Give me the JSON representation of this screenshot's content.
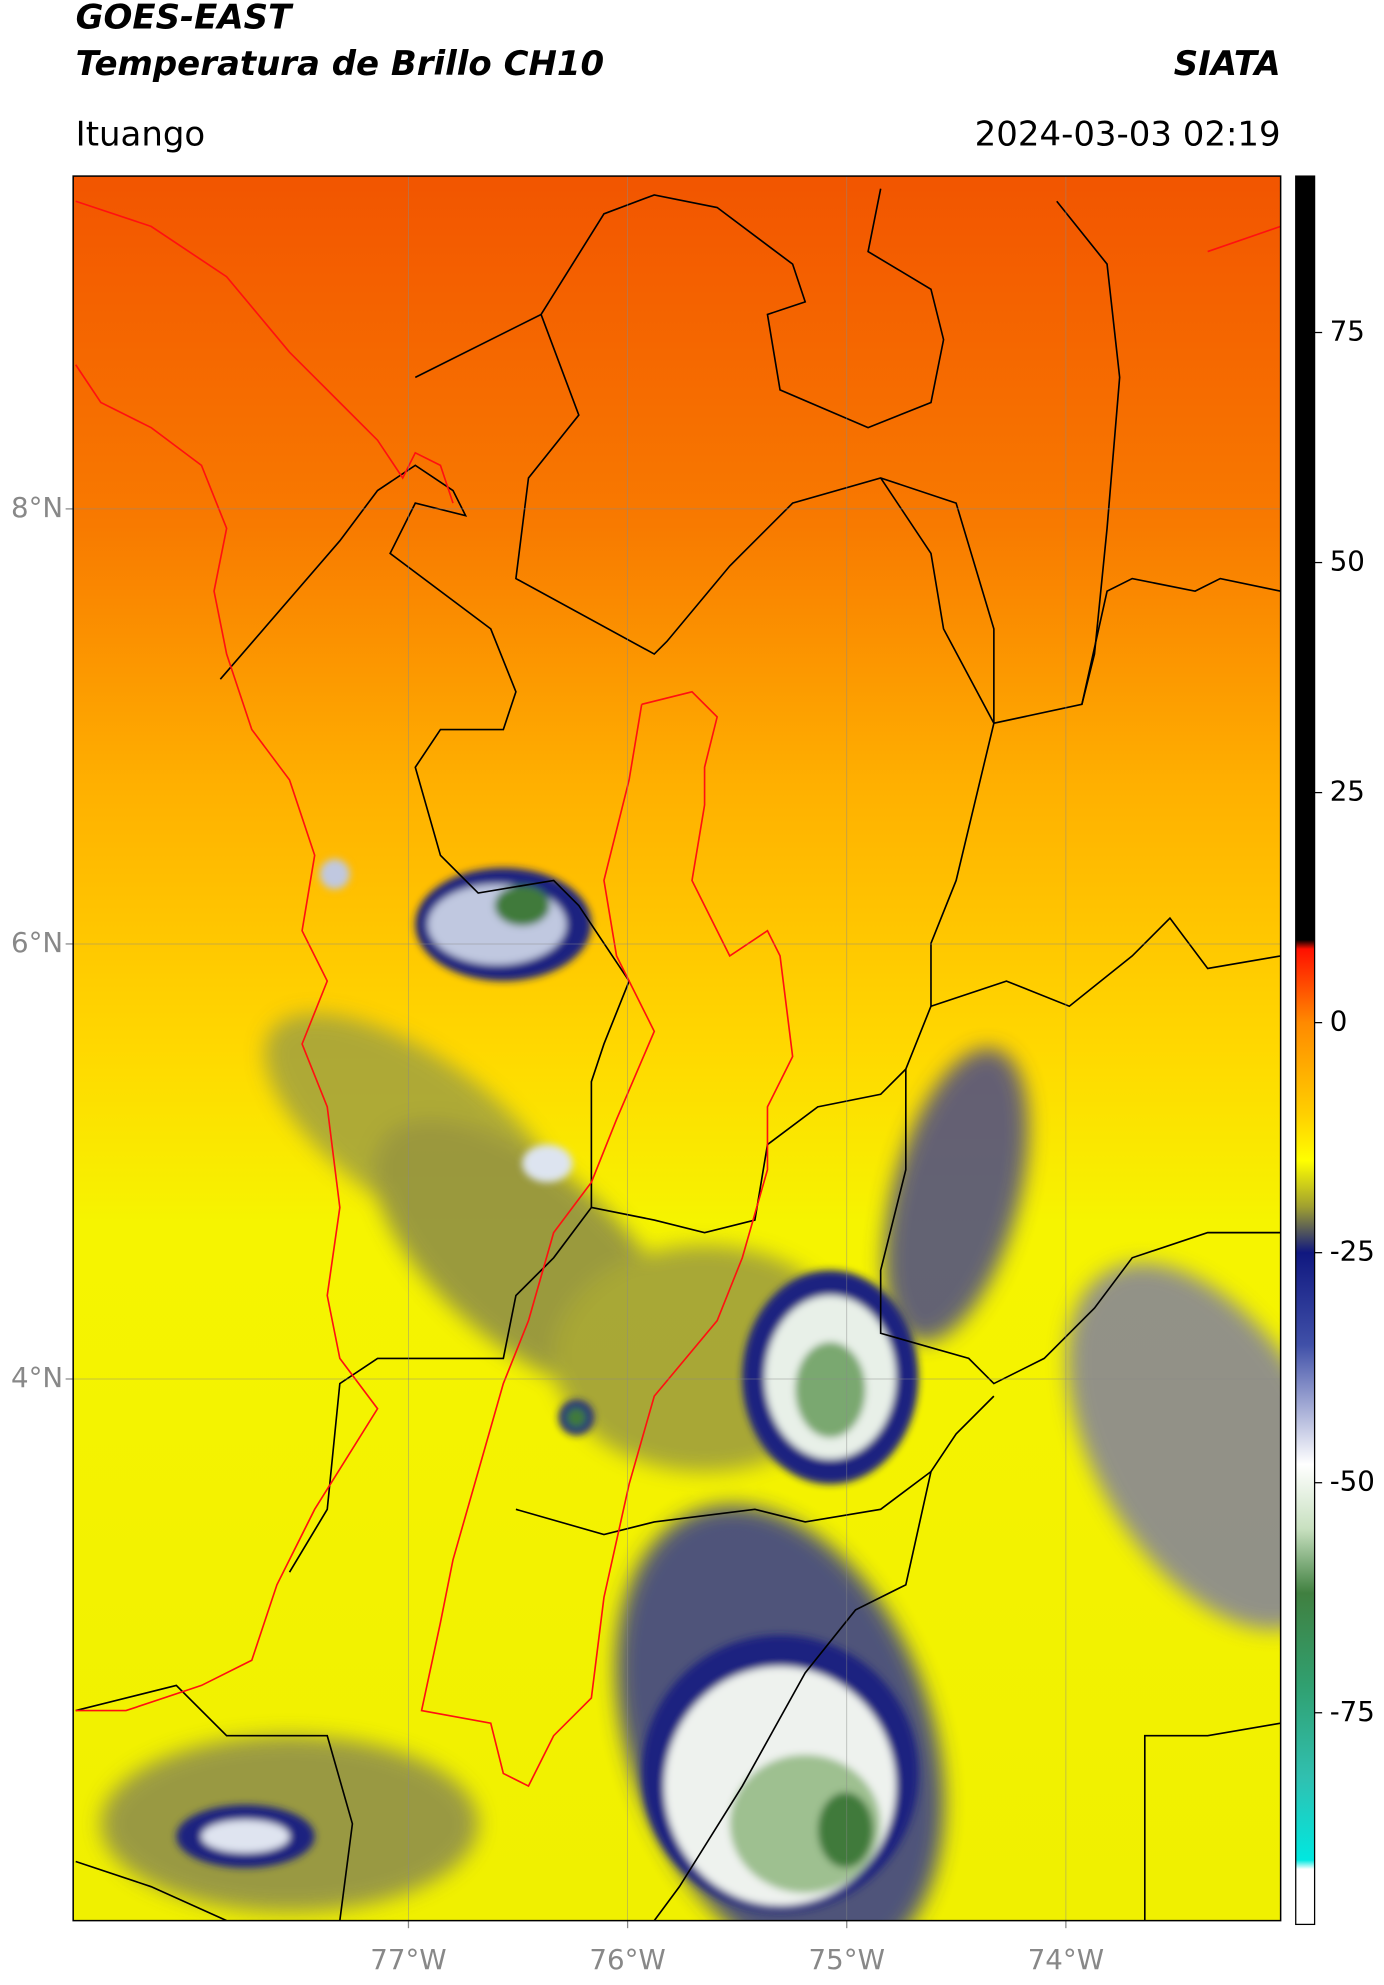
{
  "header": {
    "satellite": "GOES-EAST",
    "product": "Temperatura de Brillo CH10",
    "agency": "SIATA",
    "region": "Ituango",
    "timestamp": "2024-03-03 02:19"
  },
  "map": {
    "xlim": [
      -78.53,
      -73.02
    ],
    "ylim": [
      1.51,
      9.53
    ],
    "xticks": [
      {
        "value": -77,
        "label": "77°W"
      },
      {
        "value": -76,
        "label": "76°W"
      },
      {
        "value": -75,
        "label": "75°W"
      },
      {
        "value": -74,
        "label": "74°W"
      }
    ],
    "yticks": [
      {
        "value": 8,
        "label": "8°N"
      },
      {
        "value": 6,
        "label": "6°N"
      },
      {
        "value": 4,
        "label": "4°N"
      }
    ],
    "grid": true
  },
  "colorbar": {
    "lim": [
      -98,
      92
    ],
    "ticks": [
      75,
      50,
      25,
      0,
      -25,
      -50,
      -75
    ],
    "stops": [
      {
        "value": 92,
        "color": "#000000"
      },
      {
        "value": 9,
        "color": "#000000"
      },
      {
        "value": 8,
        "color": "#ff1000"
      },
      {
        "value": 0,
        "color": "#ff8a00"
      },
      {
        "value": -10,
        "color": "#ffd000"
      },
      {
        "value": -15,
        "color": "#ffff00"
      },
      {
        "value": -20,
        "color": "#a0a030"
      },
      {
        "value": -25,
        "color": "#101880"
      },
      {
        "value": -35,
        "color": "#4050a8"
      },
      {
        "value": -48,
        "color": "#ffffff"
      },
      {
        "value": -55,
        "color": "#c8e0c0"
      },
      {
        "value": -62,
        "color": "#408040"
      },
      {
        "value": -72,
        "color": "#30a070"
      },
      {
        "value": -82,
        "color": "#30c0b0"
      },
      {
        "value": -91,
        "color": "#00e8e0"
      },
      {
        "value": -92,
        "color": "#ffffff"
      },
      {
        "value": -98,
        "color": "#ffffff"
      }
    ]
  }
}
